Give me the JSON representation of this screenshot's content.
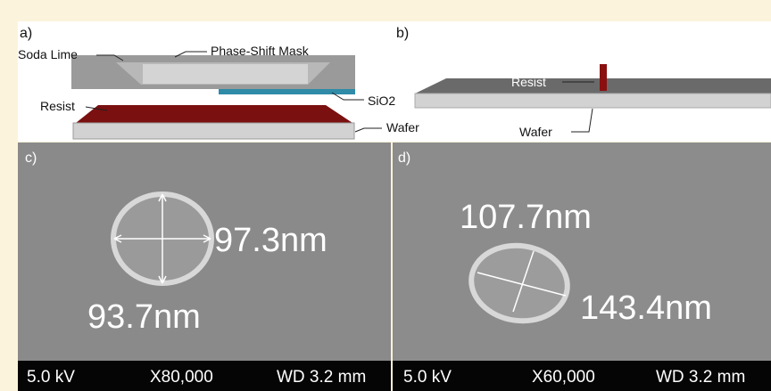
{
  "panels": [
    {
      "label": "a)",
      "annotations": [
        "Soda Lime",
        "Phase-Shift Mask",
        "SiO2",
        "Resist",
        "Wafer"
      ]
    },
    {
      "label": "b)",
      "annotations": [
        "Resist",
        "Wafer"
      ]
    },
    {
      "label": "c)",
      "measurements": [
        "97.3nm",
        "93.7nm"
      ],
      "footer": [
        "5.0 kV",
        "X80,000",
        "WD 3.2 mm"
      ]
    },
    {
      "label": "d)",
      "measurements": [
        "107.7nm",
        "143.4nm"
      ],
      "footer": [
        "5.0 kV",
        "X60,000",
        "WD 3.2 mm"
      ]
    }
  ]
}
